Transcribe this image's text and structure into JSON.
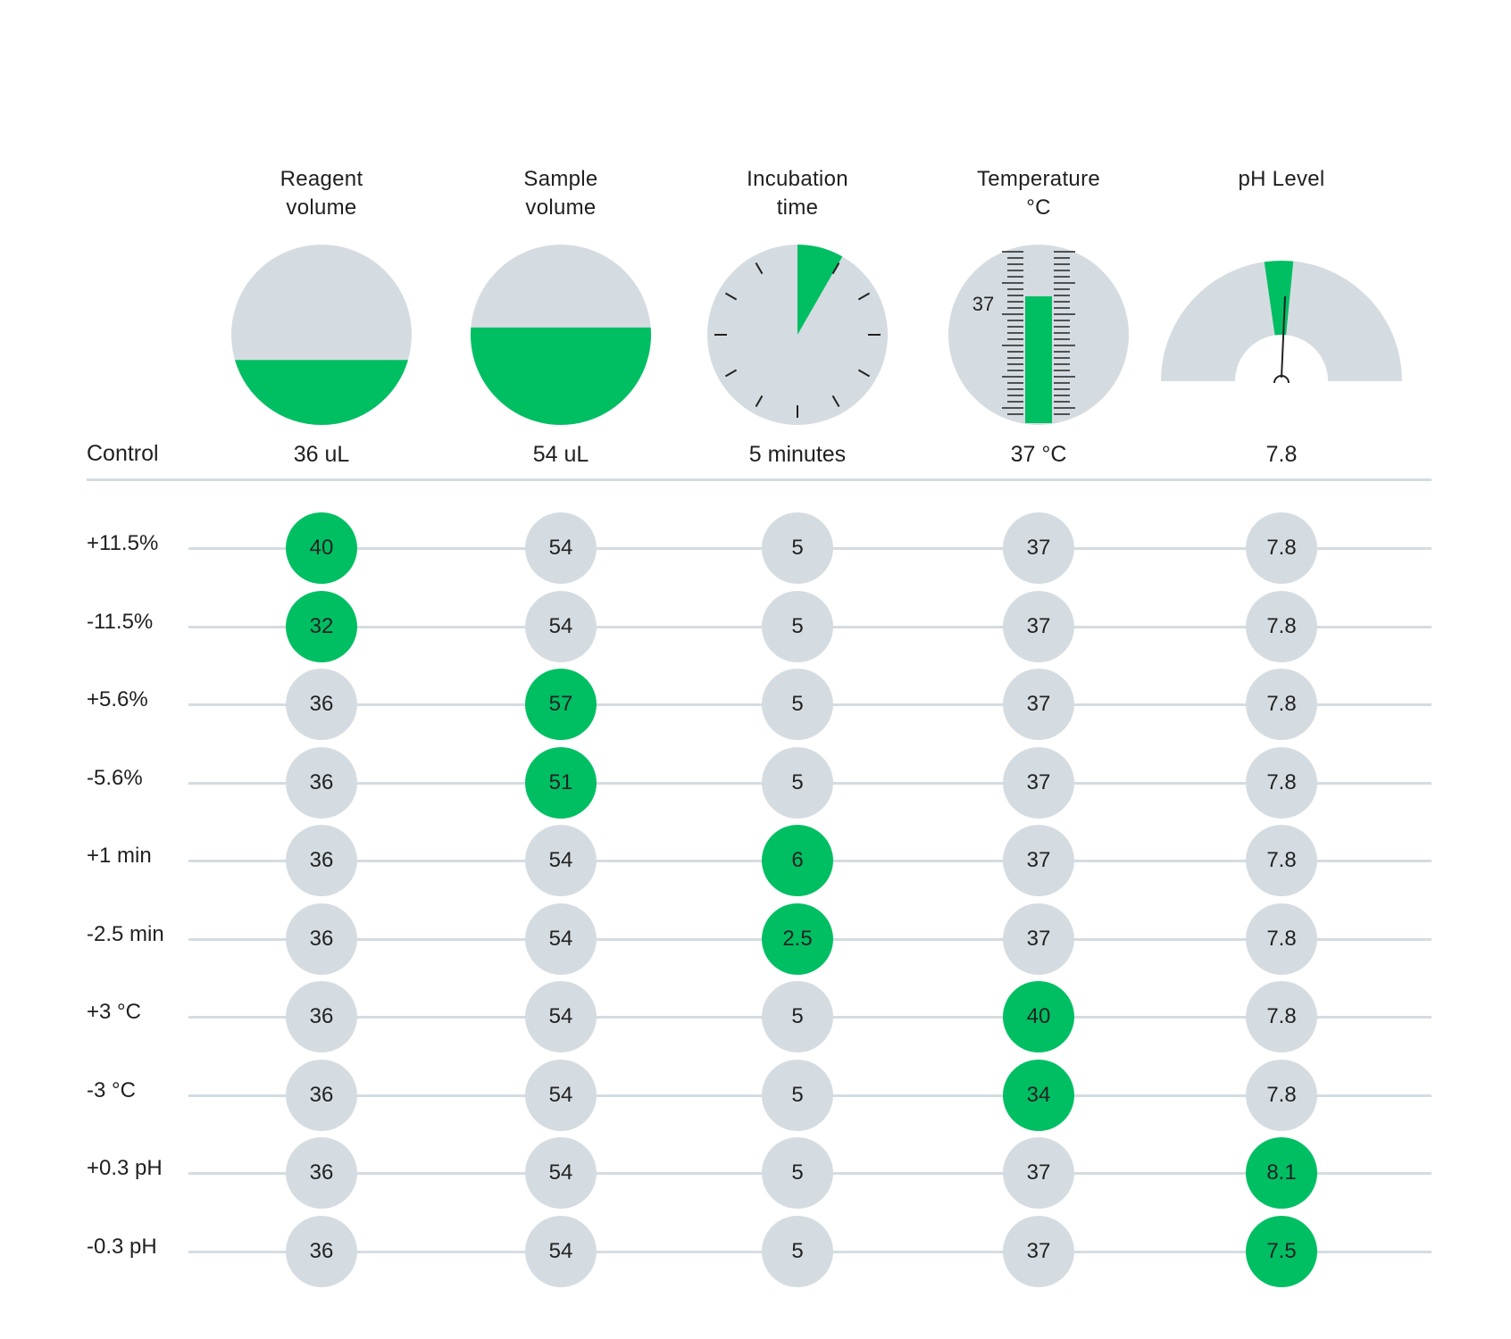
{
  "colors": {
    "accent": "#00bf63",
    "neutral": "#d5dce1",
    "text": "#1f1f1f"
  },
  "columns": [
    {
      "key": "reagent",
      "title": [
        "Reagent",
        "volume"
      ],
      "control": "36 uL",
      "icon": "half-filled-circle-icon",
      "fill_fraction": 0.36
    },
    {
      "key": "sample",
      "title": [
        "Sample",
        "volume"
      ],
      "control": "54 uL",
      "icon": "half-filled-circle-icon",
      "fill_fraction": 0.54
    },
    {
      "key": "incubation",
      "title": [
        "Incubation",
        "time"
      ],
      "control": "5 minutes",
      "icon": "clock-icon",
      "fill_fraction": 0.083
    },
    {
      "key": "temperature",
      "title": [
        "Temperature",
        "°C"
      ],
      "control": "37 °C",
      "icon": "thermometer-icon",
      "scale_label": "37",
      "fill_fraction": 0.74
    },
    {
      "key": "ph",
      "title": [
        "pH Level"
      ],
      "control": "7.8",
      "icon": "gauge-icon",
      "fill_fraction": 0.5
    }
  ],
  "control_label": "Control",
  "rows": [
    {
      "label": "+11.5%",
      "values": [
        "40",
        "54",
        "5",
        "37",
        "7.8"
      ],
      "changed": 0
    },
    {
      "label": "-11.5%",
      "values": [
        "32",
        "54",
        "5",
        "37",
        "7.8"
      ],
      "changed": 0
    },
    {
      "label": "+5.6%",
      "values": [
        "36",
        "57",
        "5",
        "37",
        "7.8"
      ],
      "changed": 1
    },
    {
      "label": "-5.6%",
      "values": [
        "36",
        "51",
        "5",
        "37",
        "7.8"
      ],
      "changed": 1
    },
    {
      "label": "+1 min",
      "values": [
        "36",
        "54",
        "6",
        "37",
        "7.8"
      ],
      "changed": 2
    },
    {
      "label": "-2.5 min",
      "values": [
        "36",
        "54",
        "2.5",
        "37",
        "7.8"
      ],
      "changed": 2
    },
    {
      "label": "+3 °C",
      "values": [
        "36",
        "54",
        "5",
        "40",
        "7.8"
      ],
      "changed": 3
    },
    {
      "label": "-3 °C",
      "values": [
        "36",
        "54",
        "5",
        "34",
        "7.8"
      ],
      "changed": 3
    },
    {
      "label": "+0.3 pH",
      "values": [
        "36",
        "54",
        "5",
        "37",
        "8.1"
      ],
      "changed": 4
    },
    {
      "label": "-0.3 pH",
      "values": [
        "36",
        "54",
        "5",
        "37",
        "7.5"
      ],
      "changed": 4
    }
  ]
}
